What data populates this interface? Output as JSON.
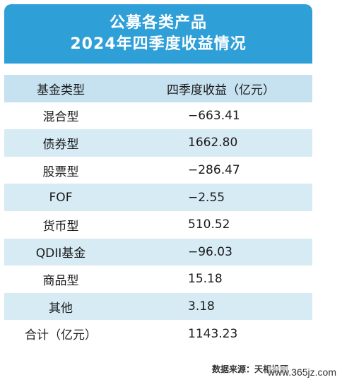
{
  "title": {
    "line1": "公募各类产品",
    "line2": "2024年四季度收益情况"
  },
  "table": {
    "headers": [
      "基金类型",
      "四季度收益（亿元）"
    ],
    "rows": [
      [
        "混合型",
        "−663.41"
      ],
      [
        "债券型",
        "1662.80"
      ],
      [
        "股票型",
        "−286.47"
      ],
      [
        "FOF",
        "−2.55"
      ],
      [
        "货币型",
        "510.52"
      ],
      [
        "QDII基金",
        "−96.03"
      ],
      [
        "商品型",
        "15.18"
      ],
      [
        "其他",
        "3.18"
      ],
      [
        "合计（亿元）",
        "1143.23"
      ]
    ]
  },
  "source": "数据来源：天相投顾",
  "watermark": "www.365jz.com",
  "colors": {
    "header_bg": "#2f9fd8",
    "row_shade": "#d7ebf5",
    "header_row": "#c6e1ef"
  }
}
